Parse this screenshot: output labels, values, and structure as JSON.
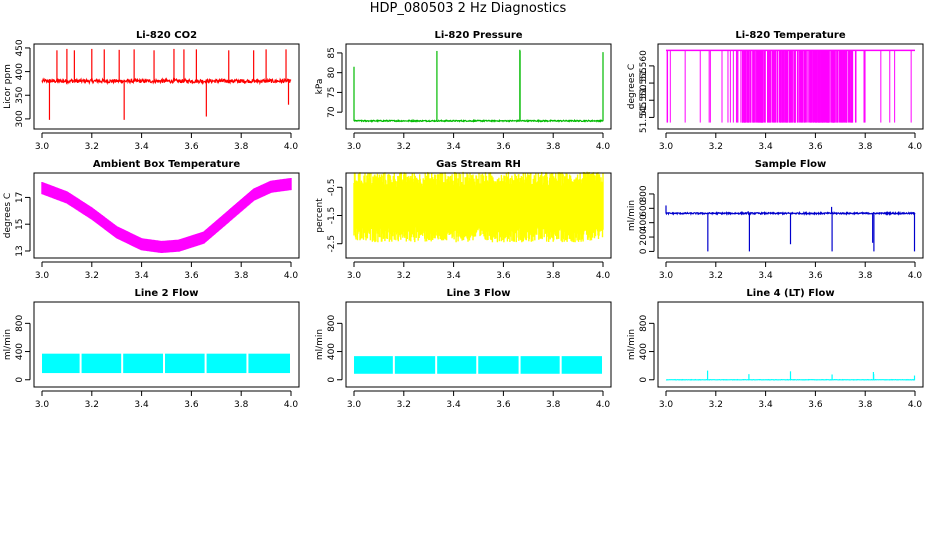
{
  "figure_title": "HDP_080503  2 Hz Diagnostics",
  "chart_data": [
    {
      "type": "line",
      "title": "Li-820 CO2",
      "ylabel": "Licor ppm",
      "color": "#ff0000",
      "xlim": [
        3.0,
        4.0
      ],
      "ylim": [
        285,
        452
      ],
      "xticks": [
        3.0,
        3.2,
        3.4,
        3.6,
        3.8,
        4.0
      ],
      "xtick_labels": [
        "3.0",
        "3.2",
        "3.4",
        "3.6",
        "3.8",
        "4.0"
      ],
      "yticks": [
        300,
        350,
        400,
        450
      ],
      "ytick_labels": [
        "300",
        "350",
        "400",
        "450"
      ],
      "series": [
        {
          "pattern": "noise_spikes",
          "base": 380,
          "noise": 4,
          "spikes": [
            {
              "x": 3.03,
              "y": 298
            },
            {
              "x": 3.06,
              "y": 445
            },
            {
              "x": 3.1,
              "y": 448
            },
            {
              "x": 3.13,
              "y": 445
            },
            {
              "x": 3.2,
              "y": 448
            },
            {
              "x": 3.25,
              "y": 447
            },
            {
              "x": 3.31,
              "y": 446
            },
            {
              "x": 3.33,
              "y": 298
            },
            {
              "x": 3.37,
              "y": 447
            },
            {
              "x": 3.45,
              "y": 445
            },
            {
              "x": 3.53,
              "y": 448
            },
            {
              "x": 3.57,
              "y": 447
            },
            {
              "x": 3.62,
              "y": 447
            },
            {
              "x": 3.66,
              "y": 305
            },
            {
              "x": 3.75,
              "y": 445
            },
            {
              "x": 3.85,
              "y": 445
            },
            {
              "x": 3.9,
              "y": 447
            },
            {
              "x": 3.98,
              "y": 447
            },
            {
              "x": 3.99,
              "y": 330
            }
          ]
        }
      ]
    },
    {
      "type": "line",
      "title": "Li-820 Pressure",
      "ylabel": "kPa",
      "color": "#00bb00",
      "xlim": [
        3.0,
        4.0
      ],
      "ylim": [
        66.5,
        86.5
      ],
      "xticks": [
        3.0,
        3.2,
        3.4,
        3.6,
        3.8,
        4.0
      ],
      "xtick_labels": [
        "3.0",
        "3.2",
        "3.4",
        "3.6",
        "3.8",
        "4.0"
      ],
      "yticks": [
        70,
        75,
        80,
        85
      ],
      "ytick_labels": [
        "70",
        "75",
        "80",
        "85"
      ],
      "series": [
        {
          "pattern": "noise_spikes",
          "base": 67.8,
          "noise": 0.15,
          "spikes": [
            {
              "x": 3.0,
              "y": 81.5
            },
            {
              "x": 3.333,
              "y": 85.5
            },
            {
              "x": 3.666,
              "y": 85.8
            },
            {
              "x": 3.667,
              "y": 85.5
            },
            {
              "x": 4.0,
              "y": 85.2
            }
          ]
        }
      ]
    },
    {
      "type": "line",
      "title": "Li-820 Temperature",
      "ylabel": "degrees C",
      "color": "#ff00ff",
      "xlim": [
        3.0,
        4.0
      ],
      "ylim": [
        51.5425,
        51.5655
      ],
      "xticks": [
        3.0,
        3.2,
        3.4,
        3.6,
        3.8,
        4.0
      ],
      "xtick_labels": [
        "3.0",
        "3.2",
        "3.4",
        "3.6",
        "3.8",
        "4.0"
      ],
      "yticks": [
        51.545,
        51.55,
        51.555,
        51.56
      ],
      "ytick_labels": [
        "51.545",
        "51.550",
        "51.555",
        "51.560"
      ],
      "series": [
        {
          "pattern": "toggle",
          "levels": [
            51.5435,
            51.5645
          ],
          "dense_range": [
            3.3,
            3.75
          ]
        }
      ]
    },
    {
      "type": "line",
      "title": "Ambient Box Temperature",
      "ylabel": "degrees C",
      "color": "#ff00ff",
      "xlim": [
        3.0,
        4.0
      ],
      "ylim": [
        12.7,
        18.6
      ],
      "xticks": [
        3.0,
        3.2,
        3.4,
        3.6,
        3.8,
        4.0
      ],
      "xtick_labels": [
        "3.0",
        "3.2",
        "3.4",
        "3.6",
        "3.8",
        "4.0"
      ],
      "yticks": [
        13,
        15,
        17
      ],
      "ytick_labels": [
        "13",
        "15",
        "17"
      ],
      "series": [
        {
          "pattern": "band",
          "center": [
            [
              3.0,
              17.7
            ],
            [
              3.1,
              17.0
            ],
            [
              3.2,
              15.8
            ],
            [
              3.3,
              14.4
            ],
            [
              3.4,
              13.5
            ],
            [
              3.48,
              13.3
            ],
            [
              3.55,
              13.4
            ],
            [
              3.65,
              14.0
            ],
            [
              3.75,
              15.6
            ],
            [
              3.85,
              17.2
            ],
            [
              3.92,
              17.8
            ],
            [
              4.0,
              18.0
            ]
          ],
          "halfwidth": 0.45
        }
      ]
    },
    {
      "type": "line",
      "title": "Gas Stream RH",
      "ylabel": "percent",
      "color": "#ffff00",
      "xlim": [
        3.0,
        4.0
      ],
      "ylim": [
        -2.9,
        -0.1
      ],
      "xticks": [
        3.0,
        3.2,
        3.4,
        3.6,
        3.8,
        4.0
      ],
      "xtick_labels": [
        "3.0",
        "3.2",
        "3.4",
        "3.6",
        "3.8",
        "4.0"
      ],
      "yticks": [
        -2.5,
        -1.5,
        -0.5
      ],
      "ytick_labels": [
        "-2.5",
        "-1.5",
        "-0.5"
      ],
      "series": [
        {
          "pattern": "band",
          "center": [
            [
              3.0,
              -1.2
            ],
            [
              4.0,
              -1.2
            ]
          ],
          "halfwidth": 0.7,
          "jitter": 0.55
        }
      ]
    },
    {
      "type": "line",
      "title": "Sample Flow",
      "ylabel": "ml/min",
      "color": "#0000cc",
      "xlim": [
        3.0,
        4.0
      ],
      "ylim": [
        -50,
        1050
      ],
      "xticks": [
        3.0,
        3.2,
        3.4,
        3.6,
        3.8,
        4.0
      ],
      "xtick_labels": [
        "3.0",
        "3.2",
        "3.4",
        "3.6",
        "3.8",
        "4.0"
      ],
      "yticks": [
        0,
        200,
        400,
        600,
        800
      ],
      "ytick_labels": [
        "0",
        "200",
        "400",
        "600",
        "800"
      ],
      "series": [
        {
          "pattern": "noise_spikes",
          "base": 530,
          "noise": 10,
          "spikes": [
            {
              "x": 3.0,
              "y": 640
            },
            {
              "x": 3.15,
              "y": 520
            },
            {
              "x": 3.168,
              "y": 0
            },
            {
              "x": 3.33,
              "y": 560
            },
            {
              "x": 3.335,
              "y": 0
            },
            {
              "x": 3.49,
              "y": 530
            },
            {
              "x": 3.5,
              "y": 100
            },
            {
              "x": 3.665,
              "y": 620
            },
            {
              "x": 3.667,
              "y": 0
            },
            {
              "x": 3.83,
              "y": 120
            },
            {
              "x": 3.835,
              "y": 0
            },
            {
              "x": 3.998,
              "y": 0
            }
          ]
        }
      ]
    },
    {
      "type": "line",
      "title": "Line 2 Flow",
      "ylabel": "ml/min",
      "color": "#00ffff",
      "xlim": [
        3.0,
        4.0
      ],
      "ylim": [
        -60,
        1060
      ],
      "xticks": [
        3.0,
        3.2,
        3.4,
        3.6,
        3.8,
        4.0
      ],
      "xtick_labels": [
        "3.0",
        "3.2",
        "3.4",
        "3.6",
        "3.8",
        "4.0"
      ],
      "yticks": [
        0,
        400,
        800
      ],
      "ytick_labels": [
        "0",
        "400",
        "800"
      ],
      "series": [
        {
          "pattern": "block",
          "low": 95,
          "high": 370,
          "gaps": [
            3.155,
            3.322,
            3.49,
            3.657,
            3.825
          ]
        }
      ]
    },
    {
      "type": "line",
      "title": "Line 3 Flow",
      "ylabel": "ml/min",
      "color": "#00ffff",
      "xlim": [
        3.0,
        4.0
      ],
      "ylim": [
        -60,
        1060
      ],
      "xticks": [
        3.0,
        3.2,
        3.4,
        3.6,
        3.8,
        4.0
      ],
      "xtick_labels": [
        "3.0",
        "3.2",
        "3.4",
        "3.6",
        "3.8",
        "4.0"
      ],
      "yticks": [
        0,
        400,
        800
      ],
      "ytick_labels": [
        "0",
        "400",
        "800"
      ],
      "series": [
        {
          "pattern": "block",
          "low": 85,
          "high": 335,
          "gaps": [
            3.16,
            3.33,
            3.495,
            3.665,
            3.83
          ]
        }
      ]
    },
    {
      "type": "line",
      "title": "Line 4 (LT) Flow",
      "ylabel": "ml/min",
      "color": "#00ffff",
      "xlim": [
        3.0,
        4.0
      ],
      "ylim": [
        -60,
        1060
      ],
      "xticks": [
        3.0,
        3.2,
        3.4,
        3.6,
        3.8,
        4.0
      ],
      "xtick_labels": [
        "3.0",
        "3.2",
        "3.4",
        "3.6",
        "3.8",
        "4.0"
      ],
      "yticks": [
        0,
        400,
        800
      ],
      "ytick_labels": [
        "0",
        "400",
        "800"
      ],
      "series": [
        {
          "pattern": "noise_spikes",
          "base": 0,
          "noise": 2,
          "spikes": [
            {
              "x": 3.167,
              "y": 130
            },
            {
              "x": 3.333,
              "y": 80
            },
            {
              "x": 3.5,
              "y": 120
            },
            {
              "x": 3.667,
              "y": 75
            },
            {
              "x": 3.833,
              "y": 110
            },
            {
              "x": 3.834,
              "y": 80
            },
            {
              "x": 3.998,
              "y": 60
            }
          ]
        }
      ]
    }
  ]
}
